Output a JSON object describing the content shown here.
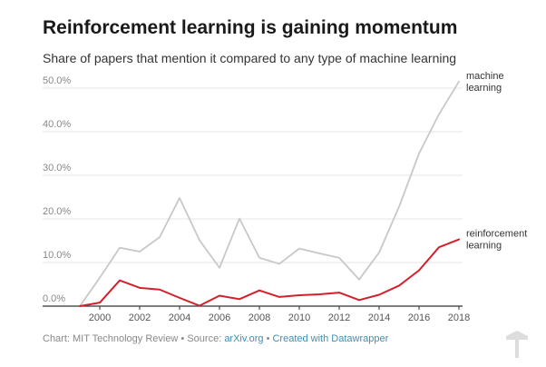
{
  "title": "Reinforcement learning is gaining momentum",
  "subtitle": "Share of papers that mention it compared to any type of machine learning",
  "footer": {
    "chart_prefix": "Chart: MIT Technology Review • Source: ",
    "source_link": "arXiv.org",
    "separator": " • ",
    "created_link": "Created with Datawrapper"
  },
  "colors": {
    "machine_learning": "#c8c8c8",
    "reinforcement_learning": "#d4202a",
    "gridline": "#e6e6e6",
    "tick_text": "#888888",
    "link": "#3a8fb7"
  },
  "chart_data": {
    "type": "line",
    "title": "Reinforcement learning is gaining momentum",
    "subtitle": "Share of papers that mention it compared to any type of machine learning",
    "x": [
      1999,
      2000,
      2001,
      2002,
      2003,
      2004,
      2005,
      2006,
      2007,
      2008,
      2009,
      2010,
      2011,
      2012,
      2013,
      2014,
      2015,
      2016,
      2017,
      2018
    ],
    "xticks": [
      "2000",
      "2002",
      "2004",
      "2006",
      "2008",
      "2010",
      "2012",
      "2014",
      "2016",
      "2018"
    ],
    "yticks": [
      "0.0%",
      "10.0%",
      "20.0%",
      "30.0%",
      "40.0%",
      "50.0%"
    ],
    "ylim": [
      0,
      50
    ],
    "grid": true,
    "series": [
      {
        "name": "machine learning",
        "label_lines": [
          "machine",
          "learning"
        ],
        "color": "#c8c8c8",
        "values": [
          0,
          6.5,
          13.4,
          12.5,
          15.8,
          24.8,
          15.1,
          8.8,
          20.1,
          11.1,
          9.7,
          13.2,
          12.1,
          11.1,
          6.1,
          12.3,
          22.8,
          35.0,
          44.0,
          51.5
        ]
      },
      {
        "name": "reinforcement learning",
        "label_lines": [
          "reinforcement",
          "learning"
        ],
        "color": "#d4202a",
        "values": [
          0,
          0.8,
          5.9,
          4.2,
          3.8,
          1.9,
          0.1,
          2.4,
          1.6,
          3.6,
          2.1,
          2.5,
          2.7,
          3.1,
          1.4,
          2.6,
          4.7,
          8.2,
          13.5,
          15.3
        ]
      }
    ]
  }
}
